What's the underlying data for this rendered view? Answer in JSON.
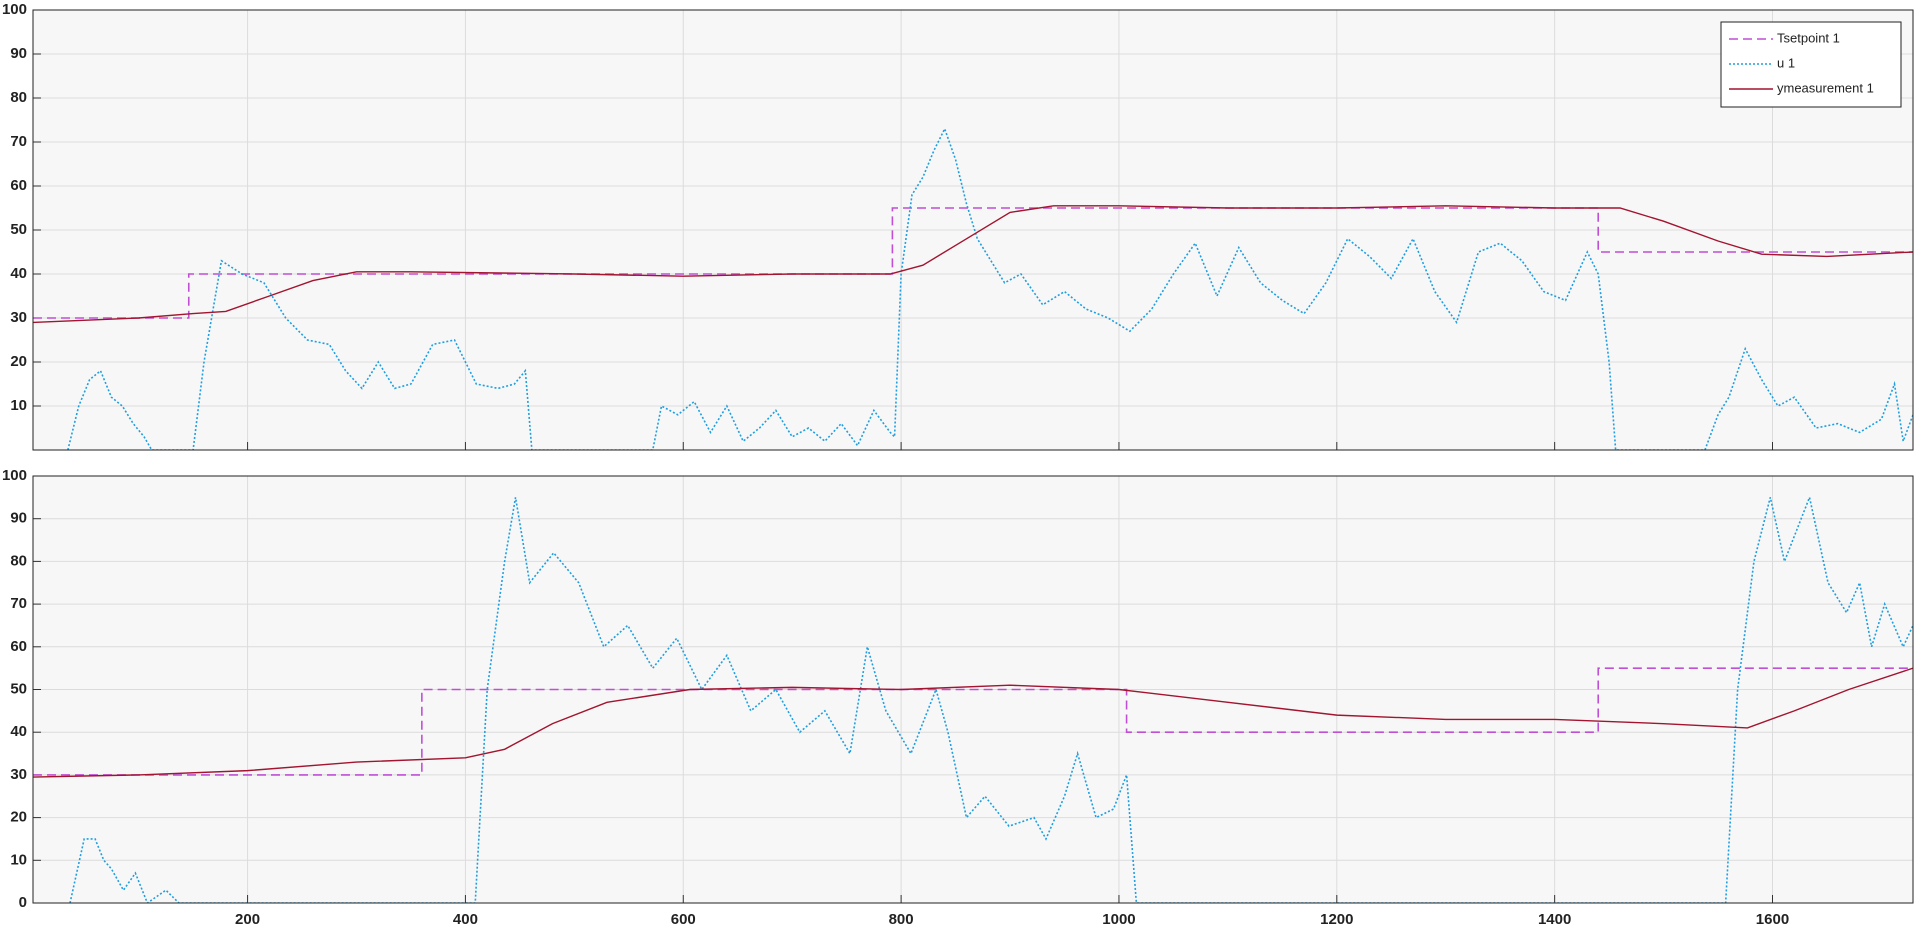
{
  "chart_data": [
    {
      "type": "line",
      "xlim": [
        3,
        1729
      ],
      "ylim": [
        0,
        100
      ],
      "xticks": [
        200,
        400,
        600,
        800,
        1000,
        1200,
        1400,
        1600
      ],
      "yticks": [
        10,
        20,
        30,
        40,
        50,
        60,
        70,
        80,
        90,
        100
      ],
      "grid": true,
      "xtick_labels": false,
      "legend": "northeast",
      "series": [
        {
          "name": "Tsetpoint 1",
          "color": "#c04fd6",
          "style": "dashed",
          "x": [
            3,
            146,
            146,
            792,
            792,
            1440,
            1440,
            1729
          ],
          "values": [
            30,
            30,
            40,
            40,
            55,
            55,
            45,
            45
          ]
        },
        {
          "name": "u 1",
          "color": "#1f9fdf",
          "style": "dotted",
          "x": [
            35,
            45,
            55,
            65,
            75,
            85,
            95,
            105,
            112,
            150,
            160,
            176,
            195,
            215,
            235,
            255,
            275,
            290,
            305,
            320,
            335,
            350,
            370,
            390,
            410,
            430,
            445,
            455,
            461,
            572,
            580,
            595,
            610,
            625,
            640,
            655,
            670,
            685,
            700,
            715,
            730,
            745,
            760,
            775,
            790,
            794,
            800,
            810,
            820,
            830,
            840,
            850,
            860,
            870,
            880,
            895,
            910,
            930,
            950,
            970,
            990,
            1010,
            1030,
            1050,
            1070,
            1090,
            1110,
            1130,
            1150,
            1170,
            1190,
            1210,
            1230,
            1250,
            1270,
            1290,
            1310,
            1330,
            1350,
            1370,
            1390,
            1410,
            1430,
            1440,
            1450,
            1456,
            1538,
            1550,
            1560,
            1575,
            1590,
            1605,
            1620,
            1640,
            1660,
            1680,
            1700,
            1712,
            1720,
            1729
          ],
          "values": [
            0,
            10,
            16,
            18,
            12,
            10,
            6,
            3,
            0,
            0,
            20,
            43,
            40,
            38,
            30,
            25,
            24,
            18,
            14,
            20,
            14,
            15,
            24,
            25,
            15,
            14,
            15,
            18,
            0,
            0,
            10,
            8,
            11,
            4,
            10,
            2,
            5,
            9,
            3,
            5,
            2,
            6,
            1,
            9,
            4,
            3,
            40,
            58,
            62,
            68,
            73,
            66,
            56,
            48,
            44,
            38,
            40,
            33,
            36,
            32,
            30,
            27,
            32,
            40,
            47,
            35,
            46,
            38,
            34,
            31,
            38,
            48,
            44,
            39,
            48,
            36,
            29,
            45,
            47,
            43,
            36,
            34,
            45,
            40,
            20,
            0,
            0,
            8,
            12,
            23,
            16,
            10,
            12,
            5,
            6,
            4,
            7,
            15,
            2,
            8
          ]
        },
        {
          "name": "ymeasurement 1",
          "color": "#a2142f",
          "style": "solid",
          "x": [
            3,
            100,
            150,
            180,
            220,
            260,
            300,
            350,
            500,
            600,
            700,
            790,
            820,
            860,
            900,
            940,
            1000,
            1100,
            1200,
            1300,
            1400,
            1460,
            1500,
            1550,
            1590,
            1650,
            1729
          ],
          "values": [
            29,
            30,
            31,
            31.5,
            35,
            38.5,
            40.5,
            40.5,
            40,
            39.5,
            40,
            40,
            42,
            48,
            54,
            55.5,
            55.5,
            55,
            55,
            55.5,
            55,
            55,
            52,
            47.5,
            44.5,
            44,
            45
          ]
        }
      ]
    },
    {
      "type": "line",
      "xlim": [
        3,
        1729
      ],
      "ylim": [
        0,
        100
      ],
      "xticks": [
        200,
        400,
        600,
        800,
        1000,
        1200,
        1400,
        1600
      ],
      "yticks": [
        0,
        10,
        20,
        30,
        40,
        50,
        60,
        70,
        80,
        90,
        100
      ],
      "grid": true,
      "series": [
        {
          "color": "#c04fd6",
          "style": "dashed",
          "x": [
            3,
            360,
            360,
            1007,
            1007,
            1440,
            1440,
            1729
          ],
          "values": [
            30,
            30,
            50,
            50,
            40,
            40,
            55,
            55
          ]
        },
        {
          "color": "#1f9fdf",
          "style": "dotted",
          "x": [
            37,
            50,
            60,
            68,
            75,
            86,
            97,
            108,
            125,
            137,
            409,
            420,
            436,
            446,
            459,
            481,
            504,
            527,
            549,
            572,
            594,
            617,
            640,
            662,
            685,
            707,
            730,
            753,
            769,
            786,
            809,
            832,
            843,
            860,
            877,
            899,
            922,
            933,
            950,
            962,
            979,
            995,
            1007,
            1016,
            1557,
            1568,
            1583,
            1598,
            1611,
            1634,
            1651,
            1668,
            1680,
            1691,
            1703,
            1720,
            1729
          ],
          "values": [
            0,
            15,
            15,
            10,
            8,
            3,
            7,
            0,
            3,
            0,
            0,
            50,
            80,
            95,
            75,
            82,
            75,
            60,
            65,
            55,
            62,
            50,
            58,
            45,
            50,
            40,
            45,
            35,
            60,
            45,
            35,
            50,
            40,
            20,
            25,
            18,
            20,
            15,
            25,
            35,
            20,
            22,
            30,
            0,
            0,
            50,
            80,
            95,
            80,
            95,
            75,
            68,
            75,
            60,
            70,
            60,
            65
          ]
        },
        {
          "color": "#a2142f",
          "style": "solid",
          "x": [
            3,
            100,
            200,
            300,
            400,
            436,
            480,
            530,
            606,
            700,
            800,
            900,
            1000,
            1100,
            1200,
            1300,
            1400,
            1500,
            1577,
            1620,
            1670,
            1729
          ],
          "values": [
            29.5,
            30,
            31,
            33,
            34,
            36,
            42,
            47,
            50,
            50.5,
            50,
            51,
            50,
            47,
            44,
            43,
            43,
            42,
            41,
            45,
            50,
            55
          ]
        }
      ]
    }
  ]
}
